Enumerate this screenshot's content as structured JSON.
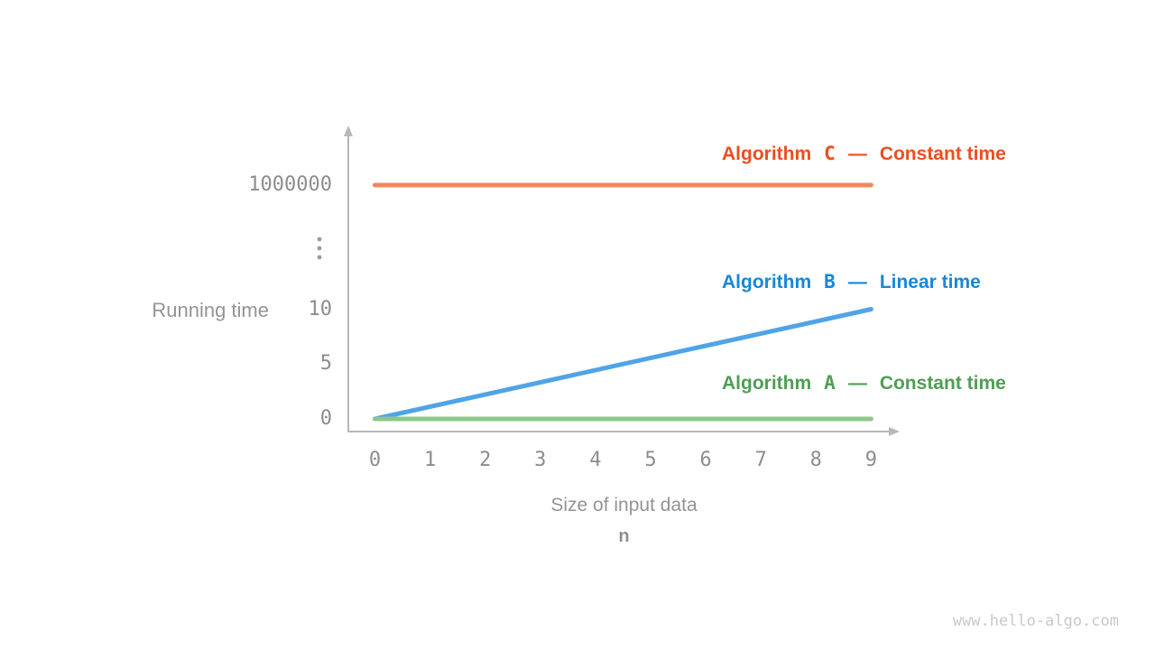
{
  "page": {
    "watermark": "www.hello-algo.com"
  },
  "chart_data": {
    "type": "line",
    "title": "",
    "xlabel": "Size of input data",
    "x_variable": "n",
    "ylabel": "Running time",
    "x_ticks": [
      0,
      1,
      2,
      3,
      4,
      5,
      6,
      7,
      8,
      9
    ],
    "y_ticks": [
      0,
      5,
      10,
      1000000
    ],
    "axis_break_symbol": "⋮",
    "legend_separator": "—",
    "xlim": [
      0,
      9
    ],
    "axis_color": "#b8b8b8",
    "series": [
      {
        "name_prefix": "Algorithm",
        "letter": "C",
        "description": "Constant time",
        "color": "#f5875a",
        "text_color": "#ec4e1e",
        "points": [
          [
            0,
            1000000
          ],
          [
            9,
            1000000
          ]
        ]
      },
      {
        "name_prefix": "Algorithm",
        "letter": "B",
        "description": "Linear time",
        "color": "#4fa4e8",
        "text_color": "#1787d8",
        "points": [
          [
            0,
            0
          ],
          [
            9,
            10
          ]
        ]
      },
      {
        "name_prefix": "Algorithm",
        "letter": "A",
        "description": "Constant time",
        "color": "#8cc78b",
        "text_color": "#4e9e53",
        "points": [
          [
            0,
            0
          ],
          [
            9,
            0
          ]
        ]
      }
    ]
  }
}
